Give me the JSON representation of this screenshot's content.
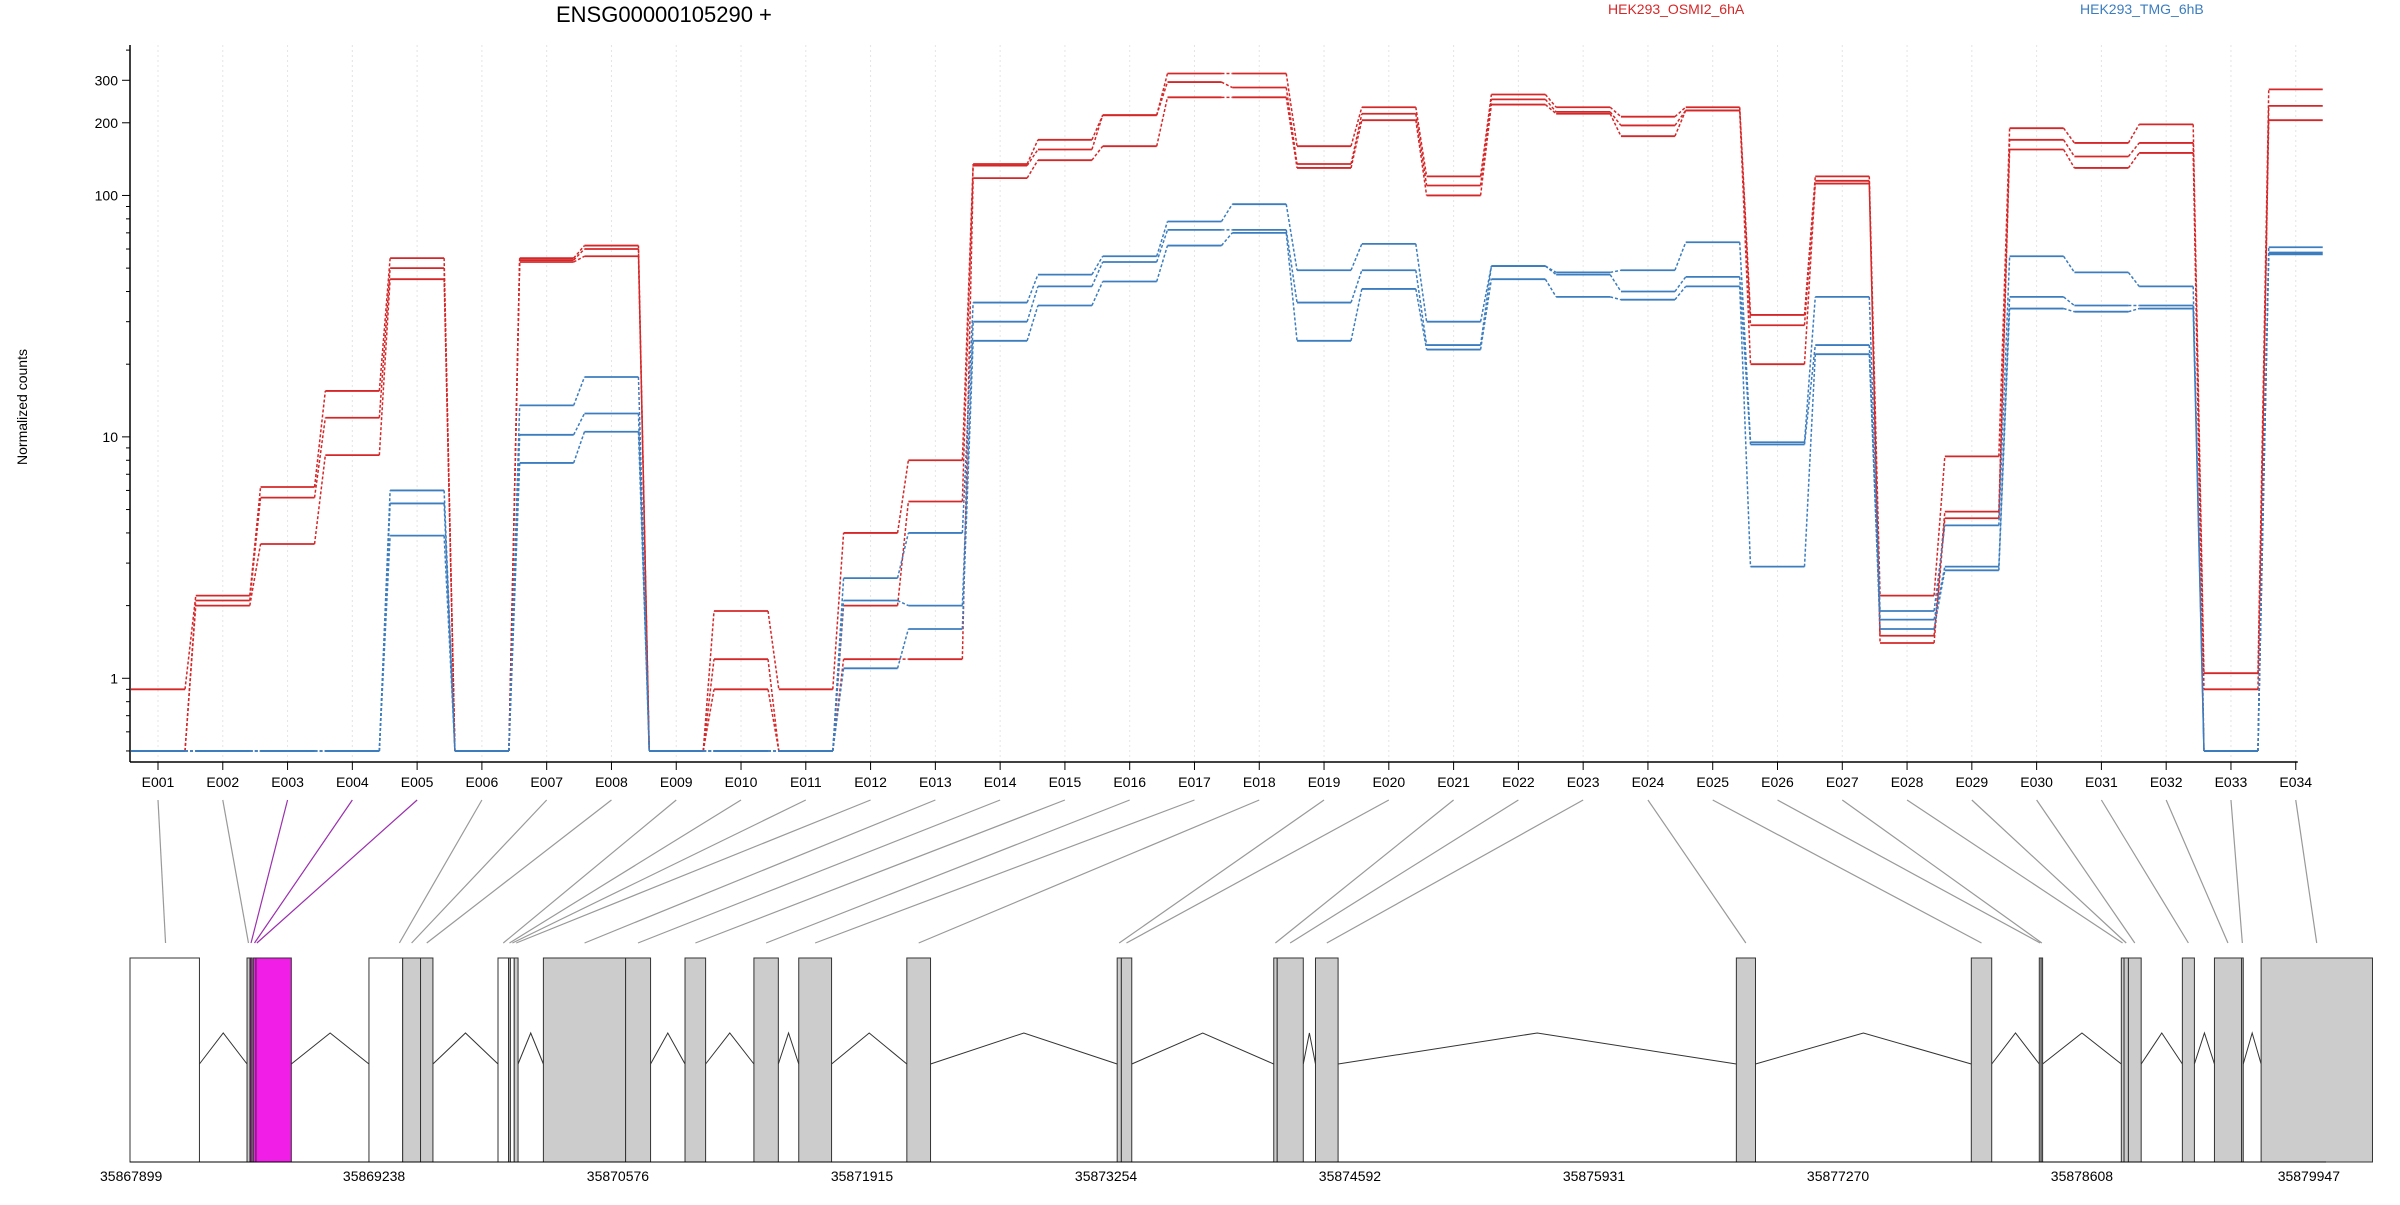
{
  "chart_data": {
    "type": "line",
    "title": "ENSG00000105290 +",
    "ylabel": "Normalized counts",
    "yscale": "log",
    "ylim": [
      0.45,
      420
    ],
    "yticks": [
      1,
      10,
      100,
      200,
      300
    ],
    "ytick_labels": [
      "1",
      "10",
      "100",
      "200",
      "300"
    ],
    "grid": "vertical dotted",
    "legend": "top",
    "categories": [
      "E001",
      "E002",
      "E003",
      "E004",
      "E005",
      "E006",
      "E007",
      "E008",
      "E009",
      "E010",
      "E011",
      "E012",
      "E013",
      "E014",
      "E015",
      "E016",
      "E017",
      "E018",
      "E019",
      "E020",
      "E021",
      "E022",
      "E023",
      "E024",
      "E025",
      "E026",
      "E027",
      "E028",
      "E029",
      "E030",
      "E031",
      "E032",
      "E033",
      "E034"
    ],
    "floor_value": 0.5,
    "groups": [
      {
        "name": "HEK293_OSMI2_6hA",
        "color": "#d62728"
      },
      {
        "name": "HEK293_TMG_6hB",
        "color": "#3b7dbf"
      }
    ],
    "series": [
      {
        "group": 0,
        "values": [
          0.9,
          2.2,
          6.2,
          15.5,
          55,
          0.5,
          55,
          62,
          0.5,
          1.9,
          0.9,
          4.0,
          8.0,
          135,
          170,
          215,
          320,
          320,
          160,
          232,
          120,
          262,
          232,
          212,
          232,
          32,
          120,
          2.2,
          8.3,
          190,
          165,
          197,
          1.05,
          275
        ]
      },
      {
        "group": 0,
        "values": [
          0.5,
          2.1,
          5.6,
          12,
          50,
          0.5,
          54,
          60,
          0.5,
          1.2,
          0.5,
          2.0,
          5.4,
          133,
          155,
          215,
          295,
          280,
          135,
          218,
          110,
          250,
          222,
          195,
          225,
          29,
          115,
          1.5,
          4.9,
          170,
          145,
          165,
          0.5,
          235
        ]
      },
      {
        "group": 0,
        "values": [
          0.5,
          2.0,
          3.6,
          8.4,
          45,
          0.5,
          53,
          56,
          0.5,
          0.9,
          0.5,
          1.2,
          1.2,
          118,
          140,
          160,
          255,
          255,
          130,
          205,
          100,
          238,
          218,
          176,
          225,
          20,
          112,
          1.4,
          4.6,
          155,
          130,
          150,
          0.9,
          205
        ]
      },
      {
        "group": 1,
        "values": [
          0.5,
          0.5,
          0.5,
          0.5,
          6.0,
          0.5,
          13.5,
          17.7,
          0.5,
          0.5,
          0.5,
          2.6,
          4.0,
          36,
          47,
          56,
          78,
          92,
          49,
          63,
          30,
          51,
          48,
          49,
          64,
          9.5,
          38,
          1.9,
          4.3,
          56,
          48,
          42,
          0.5,
          61
        ]
      },
      {
        "group": 1,
        "values": [
          0.5,
          0.5,
          0.5,
          0.5,
          5.3,
          0.5,
          10.2,
          12.5,
          0.5,
          0.5,
          0.5,
          2.1,
          2.0,
          30,
          42,
          53,
          72,
          72,
          36,
          49,
          24,
          51,
          47,
          40,
          46,
          9.3,
          24,
          1.75,
          2.9,
          38,
          35,
          35,
          0.5,
          58
        ]
      },
      {
        "group": 1,
        "values": [
          0.5,
          0.5,
          0.5,
          0.5,
          3.9,
          0.5,
          7.8,
          10.5,
          0.5,
          0.5,
          0.5,
          1.1,
          1.6,
          25,
          35,
          44,
          62,
          70,
          25,
          41,
          23,
          45,
          38,
          37,
          42,
          2.9,
          22,
          1.6,
          2.8,
          34,
          33,
          34,
          0.5,
          57
        ]
      }
    ],
    "gene_model": {
      "coordinate_ticks": [
        35867899,
        35869238,
        35870576,
        35871915,
        35873254,
        35874592,
        35875931,
        35877270,
        35878608,
        35879947
      ],
      "coordinate_range": [
        35867899,
        35879947
      ],
      "intron_color": "#333333",
      "exon_fill_plain": "#ffffff",
      "exon_fill_tested": "#cccccc",
      "exon_fill_highlight": "#f01ee6",
      "highlight_link_color": "#9b2fae",
      "link_color": "#999999",
      "blocks": [
        {
          "start": 35867899,
          "end": 35868280,
          "fill": "plain"
        },
        {
          "start": 35868541,
          "end": 35868557,
          "fill": "tested"
        },
        {
          "start": 35868560,
          "end": 35868566,
          "fill": "highlight"
        },
        {
          "start": 35868575,
          "end": 35868590,
          "fill": "highlight"
        },
        {
          "start": 35868590,
          "end": 35868784,
          "fill": "highlight"
        },
        {
          "start": 35869210,
          "end": 35869395,
          "fill": "plain"
        },
        {
          "start": 35869395,
          "end": 35869493,
          "fill": "tested"
        },
        {
          "start": 35869493,
          "end": 35869561,
          "fill": "tested"
        },
        {
          "start": 35869918,
          "end": 35869976,
          "fill": "plain"
        },
        {
          "start": 35869976,
          "end": 35869986,
          "fill": "tested"
        },
        {
          "start": 35869986,
          "end": 35870007,
          "fill": "plain"
        },
        {
          "start": 35870007,
          "end": 35870028,
          "fill": "tested"
        },
        {
          "start": 35870167,
          "end": 35870618,
          "fill": "tested"
        },
        {
          "start": 35870618,
          "end": 35870755,
          "fill": "tested"
        },
        {
          "start": 35870944,
          "end": 35871057,
          "fill": "tested"
        },
        {
          "start": 35871322,
          "end": 35871456,
          "fill": "tested"
        },
        {
          "start": 35871568,
          "end": 35871748,
          "fill": "tested"
        },
        {
          "start": 35872161,
          "end": 35872291,
          "fill": "tested"
        },
        {
          "start": 35873315,
          "end": 35873338,
          "fill": "tested"
        },
        {
          "start": 35873338,
          "end": 35873395,
          "fill": "tested"
        },
        {
          "start": 35874174,
          "end": 35874193,
          "fill": "tested"
        },
        {
          "start": 35874193,
          "end": 35874336,
          "fill": "tested"
        },
        {
          "start": 35874403,
          "end": 35874527,
          "fill": "tested"
        },
        {
          "start": 35876712,
          "end": 35876817,
          "fill": "tested"
        },
        {
          "start": 35878001,
          "end": 35878113,
          "fill": "tested"
        },
        {
          "start": 35878374,
          "end": 35878384,
          "fill": "tested"
        },
        {
          "start": 35878384,
          "end": 35878392,
          "fill": "tested"
        },
        {
          "start": 35878824,
          "end": 35878839,
          "fill": "tested"
        },
        {
          "start": 35878839,
          "end": 35878863,
          "fill": "tested"
        },
        {
          "start": 35878863,
          "end": 35878933,
          "fill": "tested"
        },
        {
          "start": 35879159,
          "end": 35879225,
          "fill": "tested"
        },
        {
          "start": 35879335,
          "end": 35879484,
          "fill": "tested"
        },
        {
          "start": 35879484,
          "end": 35879493,
          "fill": "tested"
        },
        {
          "start": 35879591,
          "end": 35880202,
          "fill": "tested"
        }
      ],
      "links": [
        {
          "exon": "E001",
          "target": 35868094,
          "highlight": false
        },
        {
          "exon": "E002",
          "target": 35868549,
          "highlight": false
        },
        {
          "exon": "E003",
          "target": 35868563,
          "highlight": true
        },
        {
          "exon": "E004",
          "target": 35868582,
          "highlight": true
        },
        {
          "exon": "E005",
          "target": 35868595,
          "highlight": true
        },
        {
          "exon": "E006",
          "target": 35869377,
          "highlight": false
        },
        {
          "exon": "E007",
          "target": 35869444,
          "highlight": false
        },
        {
          "exon": "E008",
          "target": 35869527,
          "highlight": false
        },
        {
          "exon": "E009",
          "target": 35869947,
          "highlight": false
        },
        {
          "exon": "E010",
          "target": 35869981,
          "highlight": false
        },
        {
          "exon": "E011",
          "target": 35869997,
          "highlight": false
        },
        {
          "exon": "E012",
          "target": 35870018,
          "highlight": false
        },
        {
          "exon": "E013",
          "target": 35870393,
          "highlight": false
        },
        {
          "exon": "E014",
          "target": 35870686,
          "highlight": false
        },
        {
          "exon": "E015",
          "target": 35871001,
          "highlight": false
        },
        {
          "exon": "E016",
          "target": 35871389,
          "highlight": false
        },
        {
          "exon": "E017",
          "target": 35871658,
          "highlight": false
        },
        {
          "exon": "E018",
          "target": 35872226,
          "highlight": false
        },
        {
          "exon": "E019",
          "target": 35873326,
          "highlight": false
        },
        {
          "exon": "E020",
          "target": 35873366,
          "highlight": false
        },
        {
          "exon": "E021",
          "target": 35874183,
          "highlight": false
        },
        {
          "exon": "E022",
          "target": 35874264,
          "highlight": false
        },
        {
          "exon": "E023",
          "target": 35874465,
          "highlight": false
        },
        {
          "exon": "E024",
          "target": 35876764,
          "highlight": false
        },
        {
          "exon": "E025",
          "target": 35878057,
          "highlight": false
        },
        {
          "exon": "E026",
          "target": 35878379,
          "highlight": false
        },
        {
          "exon": "E027",
          "target": 35878388,
          "highlight": false
        },
        {
          "exon": "E028",
          "target": 35878831,
          "highlight": false
        },
        {
          "exon": "E029",
          "target": 35878851,
          "highlight": false
        },
        {
          "exon": "E030",
          "target": 35878898,
          "highlight": false
        },
        {
          "exon": "E031",
          "target": 35879192,
          "highlight": false
        },
        {
          "exon": "E032",
          "target": 35879409,
          "highlight": false
        },
        {
          "exon": "E033",
          "target": 35879488,
          "highlight": false
        },
        {
          "exon": "E034",
          "target": 35879896,
          "highlight": false
        }
      ]
    }
  }
}
